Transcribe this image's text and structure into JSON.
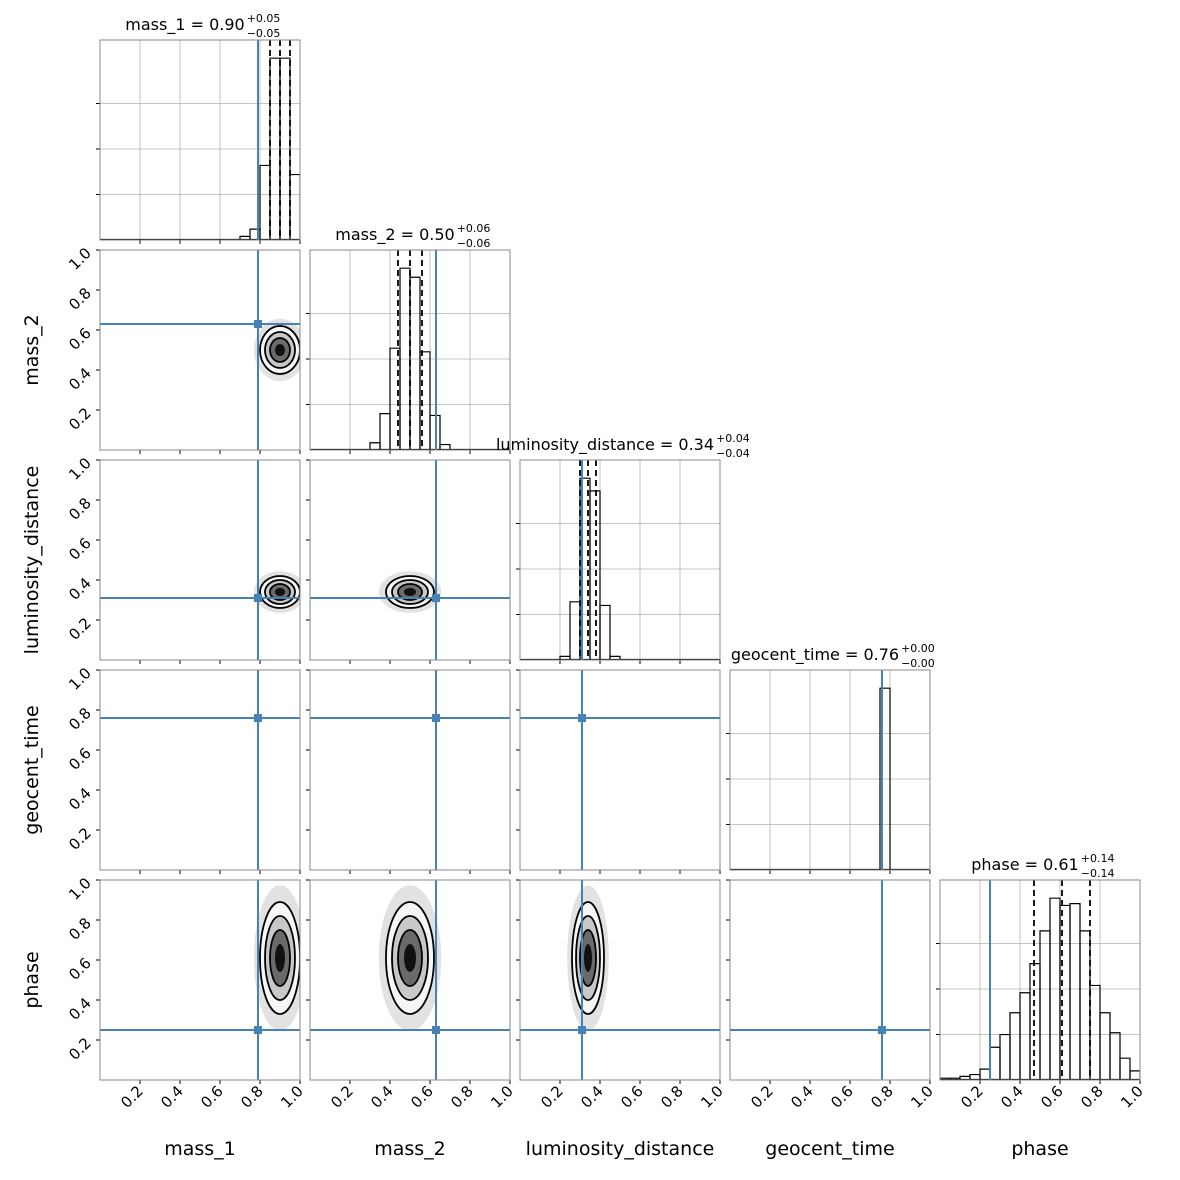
{
  "chart_data": {
    "type": "corner",
    "xlim": [
      0,
      1
    ],
    "ylim": [
      0,
      1
    ],
    "xticks": [
      0.2,
      0.4,
      0.6,
      0.8,
      {
        "value": 1,
        "label": "1.0"
      }
    ],
    "yticks": [
      0.2,
      0.4,
      0.6,
      0.8,
      {
        "value": 1,
        "label": "1.0"
      }
    ],
    "truth_color": "#4682b4",
    "grid": true,
    "parameters": [
      {
        "name": "mass_1",
        "title": "mass_1 = 0.90",
        "median": 0.9,
        "upper": {
          "value": 0.05,
          "label": "+0.05"
        },
        "lower": {
          "value": 0.05,
          "label": "−0.05"
        },
        "truth": 0.79,
        "bins": [
          0.7,
          0.75,
          0.8,
          0.85,
          0.9,
          0.95,
          1.0
        ],
        "counts": [
          0.02,
          0.06,
          0.41,
          1.0,
          1.0,
          0.36
        ]
      },
      {
        "name": "mass_2",
        "title": "mass_2 = 0.50",
        "median": 0.5,
        "upper": {
          "value": 0.06,
          "label": "+0.06"
        },
        "lower": {
          "value": 0.06,
          "label": "−0.06"
        },
        "truth": 0.63,
        "bins": [
          0.3,
          0.35,
          0.4,
          0.45,
          0.5,
          0.55,
          0.6,
          0.65,
          0.7
        ],
        "counts": [
          0.04,
          0.2,
          0.56,
          1.0,
          0.95,
          0.54,
          0.19,
          0.03
        ]
      },
      {
        "name": "luminosity_distance",
        "title": "luminosity_distance = 0.34",
        "median": 0.34,
        "upper": {
          "value": 0.04,
          "label": "+0.04"
        },
        "lower": {
          "value": 0.04,
          "label": "−0.04"
        },
        "truth": 0.31,
        "bins": [
          0.2,
          0.25,
          0.3,
          0.35,
          0.4,
          0.45,
          0.5
        ],
        "counts": [
          0.02,
          0.32,
          1.0,
          0.93,
          0.3,
          0.02
        ]
      },
      {
        "name": "geocent_time",
        "title": "geocent_time = 0.76",
        "median": 0.76,
        "upper": {
          "value": 0.0,
          "label": "+0.00"
        },
        "lower": {
          "value": 0.0,
          "label": "−0.00"
        },
        "truth": 0.76,
        "bins": [
          0.7,
          0.75,
          0.8,
          0.85
        ],
        "counts": [
          0,
          1.0,
          0
        ]
      },
      {
        "name": "phase",
        "title": "phase = 0.61",
        "median": 0.61,
        "upper": {
          "value": 0.14,
          "label": "+0.14"
        },
        "lower": {
          "value": 0.14,
          "label": "−0.14"
        },
        "truth": 0.25,
        "bins": [
          0,
          0.05,
          0.1,
          0.15,
          0.2,
          0.25,
          0.3,
          0.35,
          0.4,
          0.45,
          0.5,
          0.55,
          0.6,
          0.65,
          0.7,
          0.75,
          0.8,
          0.85,
          0.9,
          0.95,
          1.0
        ],
        "counts": [
          0.01,
          0.01,
          0.02,
          0.03,
          0.06,
          0.18,
          0.25,
          0.37,
          0.48,
          0.64,
          0.82,
          1.0,
          0.96,
          0.97,
          0.82,
          0.52,
          0.37,
          0.26,
          0.12,
          0.05
        ]
      }
    ]
  }
}
